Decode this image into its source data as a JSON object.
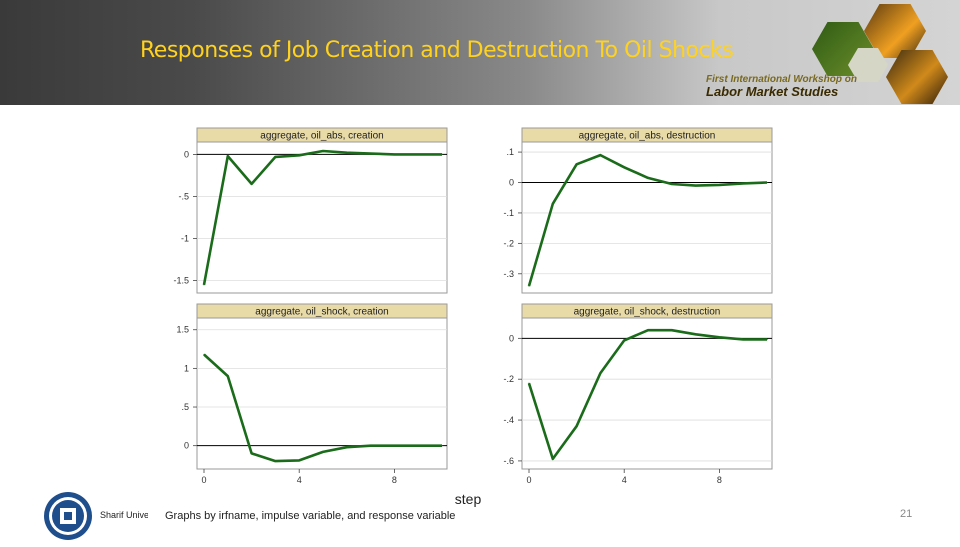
{
  "slide": {
    "title": "Responses of Job Creation and Destruction To Oil Shocks",
    "workshop_line1": "First International Workshop on",
    "workshop_line2": "Labor Market Studies",
    "footer_left": "Sharif University",
    "page_number": "21"
  },
  "colors": {
    "title": "#ffd21f",
    "line": "#1a6b1a",
    "panel_header": "#e8dba8",
    "zero_line": "#000000",
    "grid": "#dddddd"
  },
  "icons": [
    "sharif-university-logo-icon",
    "workshop-photo-hexagon-icon"
  ],
  "chart_data": {
    "type": "line",
    "xlabel": "step",
    "note": "Graphs by irfname, impulse variable, and response variable",
    "x": [
      0,
      1,
      2,
      3,
      4,
      5,
      6,
      7,
      8,
      9,
      10
    ],
    "xticks": [
      "0",
      "4",
      "8"
    ],
    "panels": [
      {
        "title": "aggregate, oil_abs, creation",
        "ylim": [
          -1.6,
          0.1
        ],
        "yticks": [
          "0",
          "-.5",
          "-1",
          "-1.5"
        ],
        "ytick_values": [
          0,
          -0.5,
          -1,
          -1.5
        ],
        "values": [
          -1.55,
          -0.02,
          -0.35,
          -0.03,
          -0.01,
          0.04,
          0.02,
          0.01,
          0.0,
          0.0,
          0.0
        ]
      },
      {
        "title": "aggregate, oil_abs, destruction",
        "ylim": [
          -0.35,
          0.12
        ],
        "yticks": [
          ".1",
          "0",
          "-.1",
          "-.2",
          "-.3"
        ],
        "ytick_values": [
          0.1,
          0,
          -0.1,
          -0.2,
          -0.3
        ],
        "values": [
          -0.34,
          -0.07,
          0.06,
          0.09,
          0.05,
          0.015,
          -0.005,
          -0.01,
          -0.008,
          -0.003,
          0.0
        ]
      },
      {
        "title": "aggregate, oil_shock, creation",
        "ylim": [
          -0.25,
          1.6
        ],
        "yticks": [
          "1.5",
          "1",
          ".5",
          "0"
        ],
        "ytick_values": [
          1.5,
          1,
          0.5,
          0
        ],
        "values": [
          1.18,
          0.9,
          -0.1,
          -0.2,
          -0.19,
          -0.08,
          -0.02,
          0.0,
          0.0,
          0.0,
          0.0
        ]
      },
      {
        "title": "aggregate, oil_shock, destruction",
        "ylim": [
          -0.62,
          0.08
        ],
        "yticks": [
          "0",
          "-.2",
          "-.4",
          "-.6"
        ],
        "ytick_values": [
          0,
          -0.2,
          -0.4,
          -0.6
        ],
        "values": [
          -0.22,
          -0.59,
          -0.43,
          -0.17,
          -0.01,
          0.04,
          0.04,
          0.02,
          0.005,
          -0.005,
          -0.005
        ]
      }
    ]
  }
}
